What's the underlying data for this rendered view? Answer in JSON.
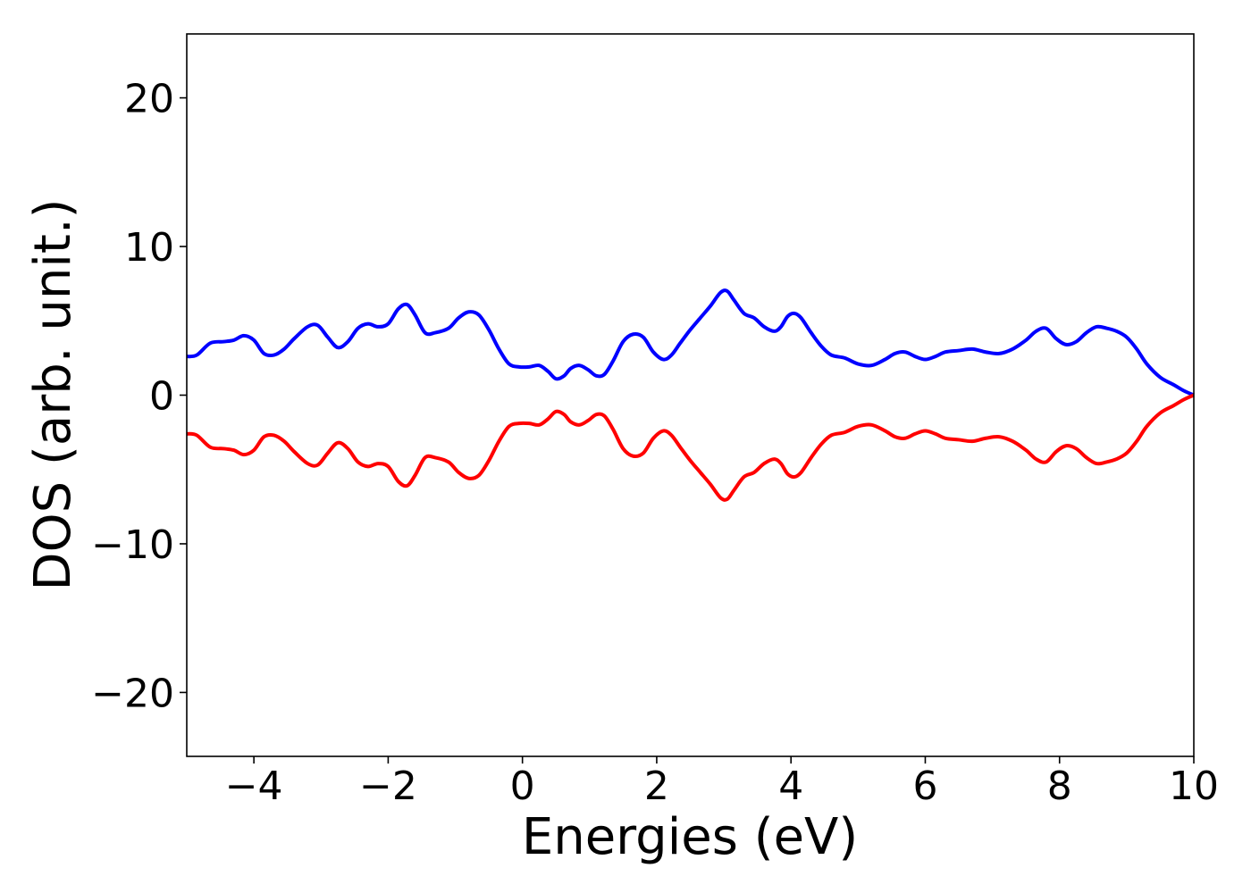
{
  "chart_data": {
    "type": "line",
    "title": "",
    "xlabel": "Energies (eV)",
    "ylabel": "DOS (arb. unit.)",
    "xlim": [
      -5,
      10
    ],
    "ylim": [
      -24.3,
      24.3
    ],
    "xticks": [
      -4,
      -2,
      0,
      2,
      4,
      6,
      8,
      10
    ],
    "xtick_labels": [
      "−4",
      "−2",
      "0",
      "2",
      "4",
      "6",
      "8",
      "10"
    ],
    "yticks": [
      -20,
      -10,
      0,
      10,
      20
    ],
    "ytick_labels": [
      "−20",
      "−10",
      "0",
      "10",
      "20"
    ],
    "grid": false,
    "legend": "none",
    "series": [
      {
        "color": "#0000ff",
        "x": [
          -5.0,
          -4.85,
          -4.65,
          -4.45,
          -4.3,
          -4.15,
          -4.0,
          -3.85,
          -3.7,
          -3.55,
          -3.4,
          -3.2,
          -3.05,
          -2.9,
          -2.75,
          -2.6,
          -2.45,
          -2.3,
          -2.15,
          -2.0,
          -1.85,
          -1.72,
          -1.6,
          -1.45,
          -1.3,
          -1.1,
          -0.95,
          -0.8,
          -0.65,
          -0.5,
          -0.35,
          -0.2,
          -0.05,
          0.1,
          0.25,
          0.38,
          0.5,
          0.62,
          0.72,
          0.85,
          0.98,
          1.1,
          1.22,
          1.35,
          1.5,
          1.65,
          1.8,
          1.95,
          2.1,
          2.22,
          2.35,
          2.5,
          2.65,
          2.8,
          2.95,
          3.05,
          3.15,
          3.3,
          3.45,
          3.6,
          3.75,
          3.85,
          3.95,
          4.05,
          4.15,
          4.3,
          4.45,
          4.6,
          4.8,
          5.0,
          5.2,
          5.4,
          5.55,
          5.7,
          5.85,
          6.0,
          6.15,
          6.3,
          6.5,
          6.7,
          6.9,
          7.1,
          7.3,
          7.5,
          7.65,
          7.8,
          7.95,
          8.1,
          8.25,
          8.4,
          8.55,
          8.7,
          8.85,
          9.0,
          9.15,
          9.3,
          9.5,
          9.7,
          9.85,
          10.0
        ],
        "y": [
          2.6,
          2.7,
          3.5,
          3.6,
          3.7,
          4.0,
          3.7,
          2.8,
          2.7,
          3.1,
          3.8,
          4.6,
          4.7,
          3.9,
          3.2,
          3.6,
          4.5,
          4.8,
          4.6,
          4.8,
          5.8,
          6.1,
          5.4,
          4.2,
          4.2,
          4.5,
          5.2,
          5.6,
          5.4,
          4.4,
          3.1,
          2.1,
          1.9,
          1.9,
          2.0,
          1.6,
          1.1,
          1.3,
          1.8,
          2.0,
          1.7,
          1.3,
          1.4,
          2.3,
          3.6,
          4.1,
          3.9,
          2.9,
          2.4,
          2.7,
          3.5,
          4.4,
          5.2,
          6.0,
          6.9,
          7.0,
          6.4,
          5.5,
          5.2,
          4.6,
          4.3,
          4.6,
          5.3,
          5.5,
          5.2,
          4.2,
          3.3,
          2.7,
          2.5,
          2.1,
          2.0,
          2.4,
          2.8,
          2.9,
          2.6,
          2.4,
          2.6,
          2.9,
          3.0,
          3.1,
          2.9,
          2.8,
          3.1,
          3.7,
          4.3,
          4.5,
          3.8,
          3.4,
          3.6,
          4.2,
          4.6,
          4.5,
          4.3,
          3.9,
          3.1,
          2.1,
          1.2,
          0.7,
          0.3,
          0.0
        ]
      },
      {
        "color": "#ff0000",
        "x": [
          -5.0,
          -4.85,
          -4.65,
          -4.45,
          -4.3,
          -4.15,
          -4.0,
          -3.85,
          -3.7,
          -3.55,
          -3.4,
          -3.2,
          -3.05,
          -2.9,
          -2.75,
          -2.6,
          -2.45,
          -2.3,
          -2.15,
          -2.0,
          -1.85,
          -1.72,
          -1.6,
          -1.45,
          -1.3,
          -1.1,
          -0.95,
          -0.8,
          -0.65,
          -0.5,
          -0.35,
          -0.2,
          -0.05,
          0.1,
          0.25,
          0.38,
          0.5,
          0.62,
          0.72,
          0.85,
          0.98,
          1.1,
          1.22,
          1.35,
          1.5,
          1.65,
          1.8,
          1.95,
          2.1,
          2.22,
          2.35,
          2.5,
          2.65,
          2.8,
          2.95,
          3.05,
          3.15,
          3.3,
          3.45,
          3.6,
          3.75,
          3.85,
          3.95,
          4.05,
          4.15,
          4.3,
          4.45,
          4.6,
          4.8,
          5.0,
          5.2,
          5.4,
          5.55,
          5.7,
          5.85,
          6.0,
          6.15,
          6.3,
          6.5,
          6.7,
          6.9,
          7.1,
          7.3,
          7.5,
          7.65,
          7.8,
          7.95,
          8.1,
          8.25,
          8.4,
          8.55,
          8.7,
          8.85,
          9.0,
          9.15,
          9.3,
          9.5,
          9.7,
          9.85,
          10.0
        ],
        "y": [
          -2.6,
          -2.7,
          -3.5,
          -3.6,
          -3.7,
          -4.0,
          -3.7,
          -2.8,
          -2.7,
          -3.1,
          -3.8,
          -4.6,
          -4.7,
          -3.9,
          -3.2,
          -3.6,
          -4.5,
          -4.8,
          -4.6,
          -4.8,
          -5.8,
          -6.1,
          -5.4,
          -4.2,
          -4.2,
          -4.5,
          -5.2,
          -5.6,
          -5.4,
          -4.4,
          -3.1,
          -2.1,
          -1.9,
          -1.9,
          -2.0,
          -1.6,
          -1.1,
          -1.3,
          -1.8,
          -2.0,
          -1.7,
          -1.3,
          -1.4,
          -2.3,
          -3.6,
          -4.1,
          -3.9,
          -2.9,
          -2.4,
          -2.7,
          -3.5,
          -4.4,
          -5.2,
          -6.0,
          -6.9,
          -7.0,
          -6.4,
          -5.5,
          -5.2,
          -4.6,
          -4.3,
          -4.6,
          -5.3,
          -5.5,
          -5.2,
          -4.2,
          -3.3,
          -2.7,
          -2.5,
          -2.1,
          -2.0,
          -2.4,
          -2.8,
          -2.9,
          -2.6,
          -2.4,
          -2.6,
          -2.9,
          -3.0,
          -3.1,
          -2.9,
          -2.8,
          -3.1,
          -3.7,
          -4.3,
          -4.5,
          -3.8,
          -3.4,
          -3.6,
          -4.2,
          -4.6,
          -4.5,
          -4.3,
          -3.9,
          -3.1,
          -2.1,
          -1.2,
          -0.7,
          -0.3,
          0.0
        ]
      }
    ]
  }
}
